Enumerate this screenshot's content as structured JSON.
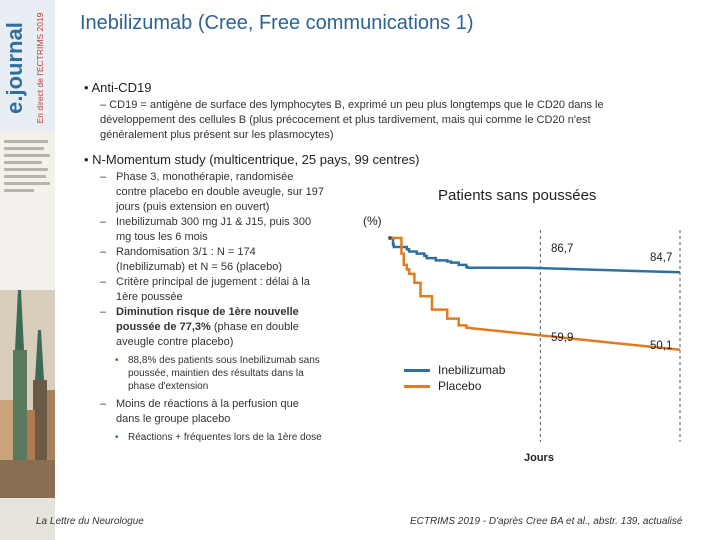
{
  "sidebar": {
    "brand": "e.journal",
    "tagline": "En direct de l'ECTRIMS 2019"
  },
  "slide": {
    "title": "Inebilizumab (Cree, Free communications 1)",
    "bullet1": "Anti-CD19",
    "bullet1_sub": "CD19 = antigène de surface des lymphocytes B, exprimé un peu plus longtemps que le CD20 dans le développement des cellules B (plus précocement et plus tardivement, mais qui comme le CD20 n'est généralement plus présent sur les plasmocytes)",
    "bullet2": "N-Momentum study (multicentrique, 25 pays, 99 centres)",
    "items": [
      "Phase 3, monothérapie, randomisée contre placebo en double aveugle, sur 197 jours (puis extension en ouvert)",
      "Inebilizumab 300 mg J1 & J15, puis 300 mg tous les 6 mois",
      "Randomisation 3/1 : N = 174 (Inebilizumab) et N = 56 (placebo)",
      "Critère principal de jugement : délai à la 1ère poussée"
    ],
    "item5_bold": "Diminution risque de 1ère nouvelle poussée de 77,3%",
    "item5_rest": " (phase en double aveugle contre placebo)",
    "item5_sub": "88,8% des patients sous Inebilizumab sans poussée, maintien des résultats dans la phase d'extension",
    "item6": "Moins de réactions à la perfusion que dans le groupe placebo",
    "item6_sub": "Réactions + fréquentes lors de la 1ère dose"
  },
  "footer": {
    "left": "La Lettre du Neurologue",
    "right": "ECTRIMS 2019 - D'après Cree BA et al., abstr. 139, actualisé"
  },
  "chart_data": {
    "type": "line",
    "title": "Patients sans poussées",
    "ylabel": "(%)",
    "xlabel": "Jours",
    "series": [
      {
        "name": "Inebilizumab",
        "color": "#2f6fa0",
        "x": [
          0,
          4,
          5,
          22,
          25,
          35,
          45,
          48,
          60,
          75,
          80,
          90,
          100,
          102,
          180,
          380
        ],
        "y": [
          100,
          97,
          96,
          95,
          94,
          93,
          92,
          91,
          90,
          89.5,
          89,
          88,
          87,
          86.7,
          86.7,
          84.7
        ],
        "labels": [
          "86,7",
          "84,7"
        ]
      },
      {
        "name": "Placebo",
        "color": "#e07b22",
        "x": [
          0,
          15,
          18,
          22,
          25,
          32,
          40,
          55,
          75,
          90,
          100,
          102,
          380
        ],
        "y": [
          100,
          93,
          88,
          86,
          84,
          80,
          74,
          68,
          64,
          61,
          60,
          59.9,
          50.1
        ],
        "labels": [
          "59,9",
          "50,1"
        ]
      }
    ]
  }
}
